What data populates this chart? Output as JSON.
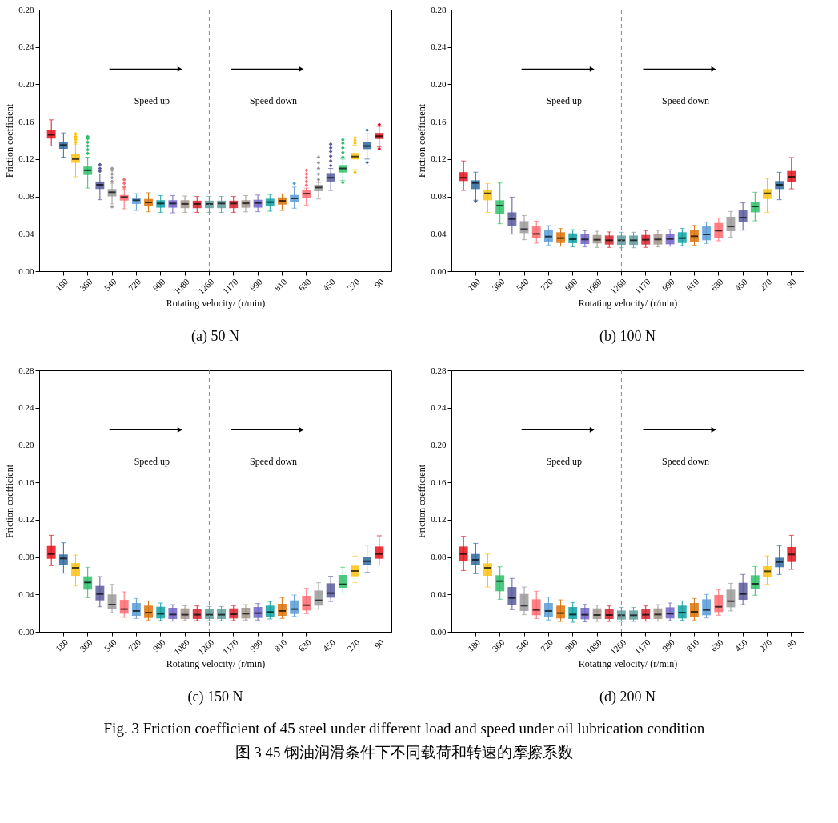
{
  "chart_data": [
    {
      "type": "box",
      "title": "(a) 50 N",
      "xlabel": "Rotating velocity/ (r/min)",
      "ylabel": "Friction coefficient",
      "grid": false,
      "categories": [
        null,
        "180",
        null,
        "360",
        null,
        "540",
        null,
        "720",
        null,
        "900",
        null,
        "1080",
        null,
        "1260",
        null,
        "1170",
        null,
        "990",
        null,
        "810",
        null,
        "630",
        null,
        "450",
        null,
        "270",
        null,
        "90"
      ],
      "colors": [
        "#e8101a",
        "#2f6aa0",
        "#ffc20e",
        "#2fbf6a",
        "#5b5a9c",
        "#9a9a9a",
        "#ff6b70",
        "#5b9bd5",
        "#d9730d",
        "#10a0a0",
        "#7063c4",
        "#a09488",
        "#d8222e",
        "#5f9c9c",
        "#5f9c9c",
        "#d8222e",
        "#a09488",
        "#7063c4",
        "#10a0a0",
        "#d9730d",
        "#5b9bd5",
        "#ff6b70",
        "#9a9a9a",
        "#5b5a9c",
        "#2fbf6a",
        "#ffc20e",
        "#2f6aa0",
        "#e8101a"
      ],
      "ylim": [
        0,
        0.28
      ],
      "yticks": [
        {
          "value": 0,
          "label": "0.00"
        },
        {
          "value": 0.04,
          "label": "0.04"
        },
        {
          "value": 0.08,
          "label": "0.08"
        },
        {
          "value": 0.12,
          "label": "0.12"
        },
        {
          "value": 0.16,
          "label": "0.16"
        },
        {
          "value": 0.2,
          "label": "0.20"
        },
        {
          "value": 0.24,
          "label": "0.24"
        },
        {
          "value": 0.28,
          "label": "0.28"
        }
      ],
      "ref_lines": [
        {
          "axis": "x",
          "value": "1260",
          "line_style": "dashed",
          "color": "#888888"
        }
      ],
      "annotations": [
        "Speed up",
        "Speed down"
      ],
      "boxes": [
        {
          "low": 0.134,
          "q1": 0.142,
          "median": 0.146,
          "q3": 0.151,
          "high": 0.162
        },
        {
          "low": 0.122,
          "q1": 0.131,
          "median": 0.135,
          "q3": 0.138,
          "high": 0.148
        },
        {
          "low": 0.101,
          "q1": 0.116,
          "median": 0.12,
          "q3": 0.125,
          "high": 0.136,
          "outliers": [
            0.138,
            0.141,
            0.144,
            0.147
          ]
        },
        {
          "low": 0.089,
          "q1": 0.103,
          "median": 0.108,
          "q3": 0.112,
          "high": 0.122,
          "outliers": [
            0.126,
            0.13,
            0.134,
            0.138,
            0.142,
            0.144
          ]
        },
        {
          "low": 0.0765,
          "q1": 0.088,
          "median": 0.0925,
          "q3": 0.096,
          "high": 0.104,
          "outliers": [
            0.107,
            0.11,
            0.114
          ]
        },
        {
          "low": 0.072,
          "q1": 0.08,
          "median": 0.0845,
          "q3": 0.088,
          "high": 0.094,
          "outliers": [
            0.069,
            0.096,
            0.1,
            0.104,
            0.108,
            0.11
          ]
        },
        {
          "low": 0.0668,
          "q1": 0.0756,
          "median": 0.0794,
          "q3": 0.0816,
          "high": 0.088,
          "outliers": [
            0.09,
            0.094,
            0.098
          ]
        },
        {
          "low": 0.065,
          "q1": 0.072,
          "median": 0.076,
          "q3": 0.0788,
          "high": 0.083
        },
        {
          "low": 0.0636,
          "q1": 0.0693,
          "median": 0.0736,
          "q3": 0.0773,
          "high": 0.084
        },
        {
          "low": 0.063,
          "q1": 0.068,
          "median": 0.0725,
          "q3": 0.076,
          "high": 0.081
        },
        {
          "low": 0.0625,
          "q1": 0.068,
          "median": 0.0725,
          "q3": 0.076,
          "high": 0.081
        },
        {
          "low": 0.063,
          "q1": 0.0675,
          "median": 0.072,
          "q3": 0.076,
          "high": 0.0805
        },
        {
          "low": 0.063,
          "q1": 0.0675,
          "median": 0.072,
          "q3": 0.0755,
          "high": 0.08
        },
        {
          "low": 0.063,
          "q1": 0.0675,
          "median": 0.072,
          "q3": 0.0755,
          "high": 0.08
        },
        {
          "low": 0.063,
          "q1": 0.0675,
          "median": 0.0725,
          "q3": 0.0755,
          "high": 0.08
        },
        {
          "low": 0.063,
          "q1": 0.0675,
          "median": 0.0725,
          "q3": 0.0755,
          "high": 0.08
        },
        {
          "low": 0.0635,
          "q1": 0.068,
          "median": 0.0727,
          "q3": 0.076,
          "high": 0.081
        },
        {
          "low": 0.0637,
          "q1": 0.068,
          "median": 0.073,
          "q3": 0.0765,
          "high": 0.0815
        },
        {
          "low": 0.0642,
          "q1": 0.07,
          "median": 0.0739,
          "q3": 0.0776,
          "high": 0.0822
        },
        {
          "low": 0.065,
          "q1": 0.0713,
          "median": 0.0753,
          "q3": 0.079,
          "high": 0.0828
        },
        {
          "low": 0.0674,
          "q1": 0.0739,
          "median": 0.0779,
          "q3": 0.0816,
          "high": 0.09,
          "outliers": [
            0.094
          ]
        },
        {
          "low": 0.0708,
          "q1": 0.0788,
          "median": 0.083,
          "q3": 0.0867,
          "high": 0.089,
          "outliers": [
            0.092,
            0.096,
            0.1,
            0.104,
            0.108
          ]
        },
        {
          "low": 0.0773,
          "q1": 0.0856,
          "median": 0.0896,
          "q3": 0.0925,
          "high": 0.095,
          "outliers": [
            0.098,
            0.104,
            0.11,
            0.116,
            0.122
          ]
        },
        {
          "low": 0.0865,
          "q1": 0.096,
          "median": 0.1,
          "q3": 0.105,
          "high": 0.11,
          "outliers": [
            0.113,
            0.118,
            0.123,
            0.128,
            0.132,
            0.136
          ]
        },
        {
          "low": 0.097,
          "q1": 0.1056,
          "median": 0.11,
          "q3": 0.1136,
          "high": 0.12,
          "outliers": [
            0.095,
            0.122,
            0.127,
            0.132,
            0.137,
            0.1407
          ]
        },
        {
          "low": 0.1087,
          "q1": 0.1196,
          "median": 0.1227,
          "q3": 0.1265,
          "high": 0.135,
          "outliers": [
            0.106,
            0.137,
            0.14,
            0.1427
          ]
        },
        {
          "low": 0.12,
          "q1": 0.1307,
          "median": 0.134,
          "q3": 0.138,
          "high": 0.147,
          "outliers": [
            0.1164,
            0.151
          ]
        },
        {
          "low": 0.133,
          "q1": 0.1415,
          "median": 0.1445,
          "q3": 0.148,
          "high": 0.155,
          "outliers": [
            0.131,
            0.157
          ]
        }
      ]
    },
    {
      "type": "box",
      "title": "(b) 100 N",
      "xlabel": "Rotating velocity/ (r/min)",
      "ylabel": "Friction coefficient",
      "grid": false,
      "categories": [
        null,
        "180",
        null,
        "360",
        null,
        "540",
        null,
        "720",
        null,
        "900",
        null,
        "1080",
        null,
        "1260",
        null,
        "1170",
        null,
        "990",
        null,
        "810",
        null,
        "630",
        null,
        "450",
        null,
        "270",
        null,
        "90"
      ],
      "colors": [
        "#e8101a",
        "#2f6aa0",
        "#ffc20e",
        "#2fbf6a",
        "#5b5a9c",
        "#9a9a9a",
        "#ff6b70",
        "#5b9bd5",
        "#d9730d",
        "#10a0a0",
        "#7063c4",
        "#a09488",
        "#d8222e",
        "#5f9c9c",
        "#5f9c9c",
        "#d8222e",
        "#a09488",
        "#7063c4",
        "#10a0a0",
        "#d9730d",
        "#5b9bd5",
        "#ff6b70",
        "#9a9a9a",
        "#5b5a9c",
        "#2fbf6a",
        "#ffc20e",
        "#2f6aa0",
        "#e8101a"
      ],
      "ylim": [
        0,
        0.28
      ],
      "yticks": [
        {
          "value": 0,
          "label": "0.00"
        },
        {
          "value": 0.04,
          "label": "0.04"
        },
        {
          "value": 0.08,
          "label": "0.08"
        },
        {
          "value": 0.12,
          "label": "0.12"
        },
        {
          "value": 0.16,
          "label": "0.16"
        },
        {
          "value": 0.2,
          "label": "0.20"
        },
        {
          "value": 0.24,
          "label": "0.24"
        },
        {
          "value": 0.28,
          "label": "0.28"
        }
      ],
      "ref_lines": [
        {
          "axis": "x",
          "value": "1260",
          "line_style": "dashed",
          "color": "#888888"
        }
      ],
      "annotations": [
        "Speed up",
        "Speed down"
      ],
      "boxes": [
        {
          "low": 0.0865,
          "q1": 0.0965,
          "median": 0.1,
          "q3": 0.106,
          "high": 0.118
        },
        {
          "low": 0.076,
          "q1": 0.0879,
          "median": 0.0945,
          "q3": 0.0973,
          "high": 0.106,
          "outliers": [
            0.0748
          ]
        },
        {
          "low": 0.063,
          "q1": 0.0759,
          "median": 0.0833,
          "q3": 0.0873,
          "high": 0.0939
        },
        {
          "low": 0.0508,
          "q1": 0.0611,
          "median": 0.0702,
          "q3": 0.0759,
          "high": 0.0944
        },
        {
          "low": 0.0397,
          "q1": 0.0488,
          "median": 0.0559,
          "q3": 0.063,
          "high": 0.0793
        },
        {
          "low": 0.0337,
          "q1": 0.0408,
          "median": 0.045,
          "q3": 0.0536,
          "high": 0.0596
        },
        {
          "low": 0.03,
          "q1": 0.0351,
          "median": 0.0399,
          "q3": 0.0479,
          "high": 0.0536
        },
        {
          "low": 0.028,
          "q1": 0.0317,
          "median": 0.0371,
          "q3": 0.0445,
          "high": 0.0488
        },
        {
          "low": 0.0268,
          "q1": 0.0302,
          "median": 0.0354,
          "q3": 0.0417,
          "high": 0.0457
        },
        {
          "low": 0.026,
          "q1": 0.03,
          "median": 0.0342,
          "q3": 0.0405,
          "high": 0.0445
        },
        {
          "low": 0.026,
          "q1": 0.0291,
          "median": 0.034,
          "q3": 0.0394,
          "high": 0.0434
        },
        {
          "low": 0.0254,
          "q1": 0.0297,
          "median": 0.0337,
          "q3": 0.0388,
          "high": 0.0428
        },
        {
          "low": 0.0254,
          "q1": 0.0285,
          "median": 0.0331,
          "q3": 0.0382,
          "high": 0.042
        },
        {
          "low": 0.0251,
          "q1": 0.0282,
          "median": 0.0331,
          "q3": 0.0382,
          "high": 0.0417
        },
        {
          "low": 0.0251,
          "q1": 0.0282,
          "median": 0.0331,
          "q3": 0.0382,
          "high": 0.0417
        },
        {
          "low": 0.0254,
          "q1": 0.0285,
          "median": 0.0337,
          "q3": 0.0388,
          "high": 0.0434
        },
        {
          "low": 0.026,
          "q1": 0.0285,
          "median": 0.034,
          "q3": 0.0394,
          "high": 0.0437
        },
        {
          "low": 0.0268,
          "q1": 0.0288,
          "median": 0.0345,
          "q3": 0.0402,
          "high": 0.0445
        },
        {
          "low": 0.0274,
          "q1": 0.0302,
          "median": 0.0354,
          "q3": 0.0417,
          "high": 0.0459
        },
        {
          "low": 0.0277,
          "q1": 0.0308,
          "median": 0.0374,
          "q3": 0.0445,
          "high": 0.0491
        },
        {
          "low": 0.0297,
          "q1": 0.0331,
          "median": 0.0394,
          "q3": 0.0479,
          "high": 0.0525
        },
        {
          "low": 0.0325,
          "q1": 0.0359,
          "median": 0.0434,
          "q3": 0.0516,
          "high": 0.0571
        },
        {
          "low": 0.0365,
          "q1": 0.0428,
          "median": 0.0479,
          "q3": 0.0582,
          "high": 0.064
        },
        {
          "low": 0.0439,
          "q1": 0.0525,
          "median": 0.0573,
          "q3": 0.0659,
          "high": 0.0731
        },
        {
          "low": 0.0539,
          "q1": 0.063,
          "median": 0.0693,
          "q3": 0.0745,
          "high": 0.0845
        },
        {
          "low": 0.063,
          "q1": 0.0773,
          "median": 0.0833,
          "q3": 0.0879,
          "high": 0.0993
        },
        {
          "low": 0.0765,
          "q1": 0.0879,
          "median": 0.0925,
          "q3": 0.0965,
          "high": 0.1059
        },
        {
          "low": 0.0882,
          "q1": 0.0953,
          "median": 0.101,
          "q3": 0.1073,
          "high": 0.1216
        }
      ]
    },
    {
      "type": "box",
      "title": "(c) 150 N",
      "xlabel": "Rotating velocity/ (r/min)",
      "ylabel": "Friction coefficient",
      "grid": false,
      "categories": [
        null,
        "180",
        null,
        "360",
        null,
        "540",
        null,
        "720",
        null,
        "900",
        null,
        "1080",
        null,
        "1260",
        null,
        "1170",
        null,
        "990",
        null,
        "810",
        null,
        "630",
        null,
        "450",
        null,
        "270",
        null,
        "90"
      ],
      "colors": [
        "#e8101a",
        "#2f6aa0",
        "#ffc20e",
        "#2fbf6a",
        "#5b5a9c",
        "#9a9a9a",
        "#ff6b70",
        "#5b9bd5",
        "#d9730d",
        "#10a0a0",
        "#7063c4",
        "#a09488",
        "#d8222e",
        "#5f9c9c",
        "#5f9c9c",
        "#d8222e",
        "#a09488",
        "#7063c4",
        "#10a0a0",
        "#d9730d",
        "#5b9bd5",
        "#ff6b70",
        "#9a9a9a",
        "#5b5a9c",
        "#2fbf6a",
        "#ffc20e",
        "#2f6aa0",
        "#e8101a"
      ],
      "ylim": [
        0,
        0.28
      ],
      "yticks": [
        {
          "value": 0,
          "label": "0.00"
        },
        {
          "value": 0.04,
          "label": "0.04"
        },
        {
          "value": 0.08,
          "label": "0.08"
        },
        {
          "value": 0.12,
          "label": "0.12"
        },
        {
          "value": 0.16,
          "label": "0.16"
        },
        {
          "value": 0.2,
          "label": "0.20"
        },
        {
          "value": 0.24,
          "label": "0.24"
        },
        {
          "value": 0.28,
          "label": "0.28"
        }
      ],
      "ref_lines": [
        {
          "axis": "x",
          "value": "1260",
          "line_style": "dashed",
          "color": "#888888"
        }
      ],
      "annotations": [
        "Speed up",
        "Speed down"
      ],
      "boxes": [
        {
          "low": 0.0708,
          "q1": 0.0782,
          "median": 0.0833,
          "q3": 0.0919,
          "high": 0.1033
        },
        {
          "low": 0.0628,
          "q1": 0.0719,
          "median": 0.0785,
          "q3": 0.0828,
          "high": 0.0953
        },
        {
          "low": 0.0491,
          "q1": 0.0599,
          "median": 0.0685,
          "q3": 0.0736,
          "high": 0.0822
        },
        {
          "low": 0.0365,
          "q1": 0.0451,
          "median": 0.0528,
          "q3": 0.0594,
          "high": 0.0691
        },
        {
          "low": 0.0268,
          "q1": 0.0337,
          "median": 0.0405,
          "q3": 0.0491,
          "high": 0.0591
        },
        {
          "low": 0.0205,
          "q1": 0.0243,
          "median": 0.0291,
          "q3": 0.04,
          "high": 0.0508
        },
        {
          "low": 0.0154,
          "q1": 0.0194,
          "median": 0.0243,
          "q3": 0.0342,
          "high": 0.0428
        },
        {
          "low": 0.0143,
          "q1": 0.0171,
          "median": 0.0223,
          "q3": 0.0308,
          "high": 0.0357
        },
        {
          "low": 0.0126,
          "q1": 0.0148,
          "median": 0.0205,
          "q3": 0.028,
          "high": 0.0331
        },
        {
          "low": 0.012,
          "q1": 0.0143,
          "median": 0.0194,
          "q3": 0.0268,
          "high": 0.0308
        },
        {
          "low": 0.0114,
          "q1": 0.0137,
          "median": 0.0185,
          "q3": 0.0257,
          "high": 0.0291
        },
        {
          "low": 0.012,
          "q1": 0.0137,
          "median": 0.0183,
          "q3": 0.0251,
          "high": 0.028
        },
        {
          "low": 0.012,
          "q1": 0.0137,
          "median": 0.0183,
          "q3": 0.0245,
          "high": 0.0277
        },
        {
          "low": 0.012,
          "q1": 0.0137,
          "median": 0.0183,
          "q3": 0.0245,
          "high": 0.0271
        },
        {
          "low": 0.012,
          "q1": 0.0137,
          "median": 0.0183,
          "q3": 0.0245,
          "high": 0.0271
        },
        {
          "low": 0.012,
          "q1": 0.0143,
          "median": 0.0188,
          "q3": 0.0251,
          "high": 0.028
        },
        {
          "low": 0.0126,
          "q1": 0.0143,
          "median": 0.0194,
          "q3": 0.0257,
          "high": 0.0291
        },
        {
          "low": 0.0126,
          "q1": 0.0148,
          "median": 0.02,
          "q3": 0.0265,
          "high": 0.0303
        },
        {
          "low": 0.0137,
          "q1": 0.0154,
          "median": 0.0211,
          "q3": 0.028,
          "high": 0.0325
        },
        {
          "low": 0.0143,
          "q1": 0.0171,
          "median": 0.0223,
          "q3": 0.03,
          "high": 0.0365
        },
        {
          "low": 0.0165,
          "q1": 0.0191,
          "median": 0.0243,
          "q3": 0.0337,
          "high": 0.0394
        },
        {
          "low": 0.0194,
          "q1": 0.0228,
          "median": 0.0285,
          "q3": 0.0385,
          "high": 0.0465
        },
        {
          "low": 0.0243,
          "q1": 0.028,
          "median": 0.0337,
          "q3": 0.0442,
          "high": 0.0525
        },
        {
          "low": 0.0325,
          "q1": 0.0365,
          "median": 0.0414,
          "q3": 0.0519,
          "high": 0.0594
        },
        {
          "low": 0.0414,
          "q1": 0.0471,
          "median": 0.0508,
          "q3": 0.0608,
          "high": 0.0691
        },
        {
          "low": 0.0525,
          "q1": 0.0594,
          "median": 0.0651,
          "q3": 0.0708,
          "high": 0.0811
        },
        {
          "low": 0.0636,
          "q1": 0.0714,
          "median": 0.0756,
          "q3": 0.0805,
          "high": 0.0928
        },
        {
          "low": 0.0714,
          "q1": 0.0782,
          "median": 0.0833,
          "q3": 0.0913,
          "high": 0.1028
        }
      ]
    },
    {
      "type": "box",
      "title": "(d) 200 N",
      "xlabel": "Rotating velocity/ (r/min)",
      "ylabel": "Friction coefficient",
      "grid": false,
      "categories": [
        null,
        "180",
        null,
        "360",
        null,
        "540",
        null,
        "720",
        null,
        "900",
        null,
        "1080",
        null,
        "1260",
        null,
        "1170",
        null,
        "990",
        null,
        "810",
        null,
        "630",
        null,
        "450",
        null,
        "270",
        null,
        "90"
      ],
      "colors": [
        "#e8101a",
        "#2f6aa0",
        "#ffc20e",
        "#2fbf6a",
        "#5b5a9c",
        "#9a9a9a",
        "#ff6b70",
        "#5b9bd5",
        "#d9730d",
        "#10a0a0",
        "#7063c4",
        "#a09488",
        "#d8222e",
        "#5f9c9c",
        "#5f9c9c",
        "#d8222e",
        "#a09488",
        "#7063c4",
        "#10a0a0",
        "#d9730d",
        "#5b9bd5",
        "#ff6b70",
        "#9a9a9a",
        "#5b5a9c",
        "#2fbf6a",
        "#ffc20e",
        "#2f6aa0",
        "#e8101a"
      ],
      "ylim": [
        0,
        0.28
      ],
      "yticks": [
        {
          "value": 0,
          "label": "0.00"
        },
        {
          "value": 0.04,
          "label": "0.04"
        },
        {
          "value": 0.08,
          "label": "0.08"
        },
        {
          "value": 0.12,
          "label": "0.12"
        },
        {
          "value": 0.16,
          "label": "0.16"
        },
        {
          "value": 0.2,
          "label": "0.20"
        },
        {
          "value": 0.24,
          "label": "0.24"
        },
        {
          "value": 0.28,
          "label": "0.28"
        }
      ],
      "ref_lines": [
        {
          "axis": "x",
          "value": "1260",
          "line_style": "dashed",
          "color": "#888888"
        }
      ],
      "annotations": [
        "Speed up",
        "Speed down"
      ],
      "boxes": [
        {
          "low": 0.0656,
          "q1": 0.0753,
          "median": 0.0833,
          "q3": 0.0913,
          "high": 0.1022
        },
        {
          "low": 0.0622,
          "q1": 0.0719,
          "median": 0.0771,
          "q3": 0.0833,
          "high": 0.0947
        },
        {
          "low": 0.0479,
          "q1": 0.0599,
          "median": 0.0685,
          "q3": 0.0733,
          "high": 0.0833
        },
        {
          "low": 0.0348,
          "q1": 0.0434,
          "median": 0.0542,
          "q3": 0.0605,
          "high": 0.0696
        },
        {
          "low": 0.0237,
          "q1": 0.0291,
          "median": 0.0362,
          "q3": 0.0479,
          "high": 0.0571
        },
        {
          "low": 0.0183,
          "q1": 0.0223,
          "median": 0.028,
          "q3": 0.0405,
          "high": 0.0479
        },
        {
          "low": 0.0143,
          "q1": 0.0177,
          "median": 0.0234,
          "q3": 0.0348,
          "high": 0.0434
        },
        {
          "low": 0.0126,
          "q1": 0.016,
          "median": 0.0223,
          "q3": 0.0308,
          "high": 0.0371
        },
        {
          "low": 0.0111,
          "q1": 0.0143,
          "median": 0.02,
          "q3": 0.028,
          "high": 0.0342
        },
        {
          "low": 0.0103,
          "q1": 0.0137,
          "median": 0.0185,
          "q3": 0.0265,
          "high": 0.0314
        },
        {
          "low": 0.0106,
          "q1": 0.0134,
          "median": 0.0183,
          "q3": 0.0257,
          "high": 0.0294
        },
        {
          "low": 0.0111,
          "q1": 0.0137,
          "median": 0.018,
          "q3": 0.0251,
          "high": 0.0285
        },
        {
          "low": 0.0111,
          "q1": 0.0137,
          "median": 0.018,
          "q3": 0.024,
          "high": 0.0277
        },
        {
          "low": 0.0111,
          "q1": 0.0131,
          "median": 0.0177,
          "q3": 0.0228,
          "high": 0.0262
        },
        {
          "low": 0.0111,
          "q1": 0.0131,
          "median": 0.0177,
          "q3": 0.0228,
          "high": 0.0262
        },
        {
          "low": 0.0114,
          "q1": 0.0137,
          "median": 0.0183,
          "q3": 0.024,
          "high": 0.0277
        },
        {
          "low": 0.0114,
          "q1": 0.0137,
          "median": 0.0185,
          "q3": 0.0251,
          "high": 0.0291
        },
        {
          "low": 0.012,
          "q1": 0.0143,
          "median": 0.0194,
          "q3": 0.0262,
          "high": 0.0308
        },
        {
          "low": 0.0123,
          "q1": 0.0143,
          "median": 0.0205,
          "q3": 0.028,
          "high": 0.0331
        },
        {
          "low": 0.0126,
          "q1": 0.016,
          "median": 0.0214,
          "q3": 0.0308,
          "high": 0.0357
        },
        {
          "low": 0.0148,
          "q1": 0.0177,
          "median": 0.0234,
          "q3": 0.0348,
          "high": 0.04
        },
        {
          "low": 0.0177,
          "q1": 0.0211,
          "median": 0.0268,
          "q3": 0.0394,
          "high": 0.0451
        },
        {
          "low": 0.0223,
          "q1": 0.0262,
          "median": 0.0328,
          "q3": 0.0451,
          "high": 0.0519
        },
        {
          "low": 0.0291,
          "q1": 0.0342,
          "median": 0.0405,
          "q3": 0.0525,
          "high": 0.0614
        },
        {
          "low": 0.0391,
          "q1": 0.0457,
          "median": 0.0514,
          "q3": 0.0605,
          "high": 0.0699
        },
        {
          "low": 0.0508,
          "q1": 0.0588,
          "median": 0.0648,
          "q3": 0.0702,
          "high": 0.0813
        },
        {
          "low": 0.0614,
          "q1": 0.0691,
          "median": 0.0748,
          "q3": 0.0793,
          "high": 0.0919
        },
        {
          "low": 0.0668,
          "q1": 0.0748,
          "median": 0.0828,
          "q3": 0.0908,
          "high": 0.1033
        }
      ]
    },
    {
      "type": "other",
      "annotations": [
        "Fig. 3 Friction coefficient of 45 steel under different load and speed under oil lubrication condition",
        "图 3 45 钢油润滑条件下不同载荷和转速的摩擦系数"
      ]
    }
  ]
}
